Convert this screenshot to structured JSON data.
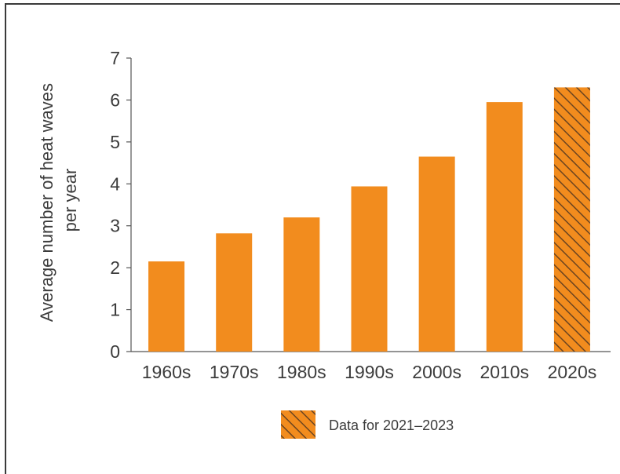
{
  "chart_data": {
    "type": "bar",
    "ylabel_lines": [
      "Average number of heat waves",
      "per year"
    ],
    "categories": [
      "1960s",
      "1970s",
      "1980s",
      "1990s",
      "2000s",
      "2010s",
      "2020s"
    ],
    "values": [
      2.15,
      2.82,
      3.2,
      3.94,
      4.65,
      5.95,
      6.3
    ],
    "hatched": [
      false,
      false,
      false,
      false,
      false,
      false,
      true
    ],
    "ylim": [
      0,
      7
    ],
    "yticks": [
      0,
      1,
      2,
      3,
      4,
      5,
      6,
      7
    ],
    "grid": false,
    "bar_color": "#f28c1e",
    "hatch_color": "#6b4420",
    "legend": {
      "label": "Data for 2021–2023",
      "position": "bottom-center"
    }
  }
}
